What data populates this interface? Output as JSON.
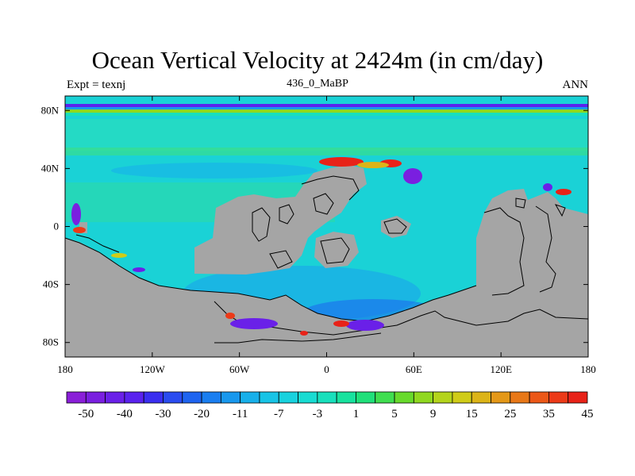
{
  "chart_data": {
    "type": "heatmap",
    "title": "Ocean Vertical Velocity at 2424m (in cm/day)",
    "subtitle_left": "Expt = texnj",
    "subtitle_center": "436_0_MaBP",
    "subtitle_right": "ANN",
    "x_ticks": [
      "180",
      "120W",
      "60W",
      "0",
      "60E",
      "120E",
      "180"
    ],
    "y_ticks": [
      "80N",
      "40N",
      "0",
      "40S",
      "80S"
    ],
    "x_range": [
      -180,
      180
    ],
    "y_range": [
      -90,
      90
    ],
    "colorbar_labels": [
      "-50",
      "-40",
      "-30",
      "-20",
      "-11",
      "-7",
      "-3",
      "1",
      "5",
      "9",
      "15",
      "25",
      "35",
      "45"
    ],
    "colorbar_colors": [
      "#8a1fd8",
      "#7a1fe0",
      "#6a20e8",
      "#5a22ee",
      "#3a2ef0",
      "#2a4cf0",
      "#1e64f0",
      "#1a7ef0",
      "#1898ee",
      "#18b0ea",
      "#18c4e6",
      "#18d2de",
      "#18dcd2",
      "#18e0bc",
      "#18e29e",
      "#20e07a",
      "#40de50",
      "#68da2c",
      "#90d820",
      "#b4d41c",
      "#d0cc18",
      "#dcb418",
      "#e49818",
      "#e87818",
      "#ec5818",
      "#ec3a18",
      "#e82218"
    ],
    "land_color": "#a5a5a5",
    "ocean_color": "#1ad4d8"
  }
}
